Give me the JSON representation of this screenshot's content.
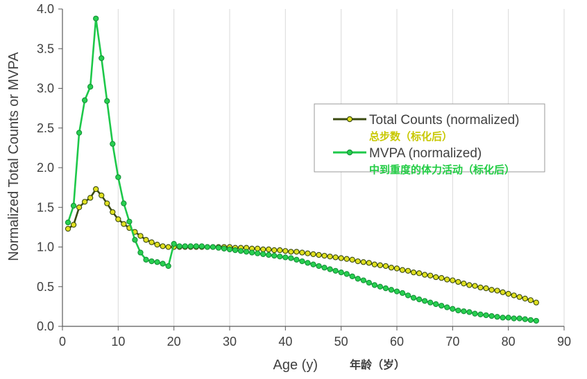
{
  "chart_data": {
    "type": "line",
    "title": "",
    "xlabel": "Age (y)",
    "xlabel_cn": "年龄（岁）",
    "ylabel": "Normalized Total Counts or MVPA",
    "xlim": [
      0,
      90
    ],
    "ylim": [
      0.0,
      4.0
    ],
    "xticks": [
      0,
      10,
      20,
      30,
      40,
      50,
      60,
      70,
      80,
      90
    ],
    "yticks": [
      "0.0",
      "0.5",
      "1.0",
      "1.5",
      "2.0",
      "2.5",
      "3.0",
      "3.5",
      "4.0"
    ],
    "grid": "vertical",
    "legend_position": "right-middle",
    "series": [
      {
        "name": "Total Counts (normalized)",
        "name_cn": "总步数（标化后）",
        "line_color": "#3a4a10",
        "marker_color": "#e0e020",
        "label_color": "#c8c800",
        "x": [
          1,
          2,
          3,
          4,
          5,
          6,
          7,
          8,
          9,
          10,
          11,
          12,
          13,
          14,
          15,
          16,
          17,
          18,
          19,
          20,
          21,
          22,
          23,
          24,
          25,
          26,
          27,
          28,
          29,
          30,
          31,
          32,
          33,
          34,
          35,
          36,
          37,
          38,
          39,
          40,
          41,
          42,
          43,
          44,
          45,
          46,
          47,
          48,
          49,
          50,
          51,
          52,
          53,
          54,
          55,
          56,
          57,
          58,
          59,
          60,
          61,
          62,
          63,
          64,
          65,
          66,
          67,
          68,
          69,
          70,
          71,
          72,
          73,
          74,
          75,
          76,
          77,
          78,
          79,
          80,
          81,
          82,
          83,
          84,
          85
        ],
        "values": [
          1.23,
          1.28,
          1.5,
          1.57,
          1.62,
          1.73,
          1.65,
          1.55,
          1.44,
          1.35,
          1.29,
          1.24,
          1.19,
          1.14,
          1.09,
          1.06,
          1.03,
          1.01,
          1.0,
          1.0,
          1.0,
          1.0,
          1.0,
          1.0,
          1.0,
          1.0,
          1.0,
          1.0,
          1.0,
          1.0,
          0.99,
          0.99,
          0.99,
          0.98,
          0.98,
          0.97,
          0.97,
          0.96,
          0.96,
          0.95,
          0.94,
          0.94,
          0.93,
          0.92,
          0.91,
          0.9,
          0.89,
          0.88,
          0.87,
          0.86,
          0.85,
          0.84,
          0.82,
          0.81,
          0.8,
          0.78,
          0.77,
          0.76,
          0.74,
          0.73,
          0.71,
          0.7,
          0.68,
          0.67,
          0.65,
          0.64,
          0.62,
          0.61,
          0.59,
          0.58,
          0.56,
          0.54,
          0.52,
          0.51,
          0.49,
          0.48,
          0.46,
          0.45,
          0.43,
          0.41,
          0.39,
          0.37,
          0.35,
          0.33,
          0.3
        ]
      },
      {
        "name": "MVPA (normalized)",
        "name_cn": "中到重度的体力活动（标化后）",
        "line_color": "#1ec84a",
        "marker_color": "#28d050",
        "label_color": "#22cc44",
        "x": [
          1,
          2,
          3,
          4,
          5,
          6,
          7,
          8,
          9,
          10,
          11,
          12,
          13,
          14,
          15,
          16,
          17,
          18,
          19,
          20,
          21,
          22,
          23,
          24,
          25,
          26,
          27,
          28,
          29,
          30,
          31,
          32,
          33,
          34,
          35,
          36,
          37,
          38,
          39,
          40,
          41,
          42,
          43,
          44,
          45,
          46,
          47,
          48,
          49,
          50,
          51,
          52,
          53,
          54,
          55,
          56,
          57,
          58,
          59,
          60,
          61,
          62,
          63,
          64,
          65,
          66,
          67,
          68,
          69,
          70,
          71,
          72,
          73,
          74,
          75,
          76,
          77,
          78,
          79,
          80,
          81,
          82,
          83,
          84,
          85
        ],
        "values": [
          1.31,
          1.52,
          2.44,
          2.85,
          3.02,
          3.88,
          3.38,
          2.84,
          2.3,
          1.88,
          1.55,
          1.32,
          1.09,
          0.93,
          0.84,
          0.82,
          0.81,
          0.79,
          0.76,
          1.04,
          1.01,
          1.01,
          1.01,
          1.01,
          1.01,
          1.0,
          1.0,
          0.99,
          0.98,
          0.97,
          0.96,
          0.95,
          0.94,
          0.93,
          0.92,
          0.91,
          0.9,
          0.89,
          0.88,
          0.87,
          0.86,
          0.84,
          0.82,
          0.8,
          0.78,
          0.76,
          0.74,
          0.72,
          0.7,
          0.68,
          0.66,
          0.63,
          0.6,
          0.58,
          0.55,
          0.52,
          0.5,
          0.48,
          0.46,
          0.44,
          0.42,
          0.39,
          0.36,
          0.34,
          0.32,
          0.3,
          0.28,
          0.26,
          0.24,
          0.22,
          0.2,
          0.19,
          0.18,
          0.16,
          0.15,
          0.14,
          0.13,
          0.12,
          0.11,
          0.11,
          0.1,
          0.1,
          0.09,
          0.08,
          0.07
        ]
      }
    ]
  }
}
